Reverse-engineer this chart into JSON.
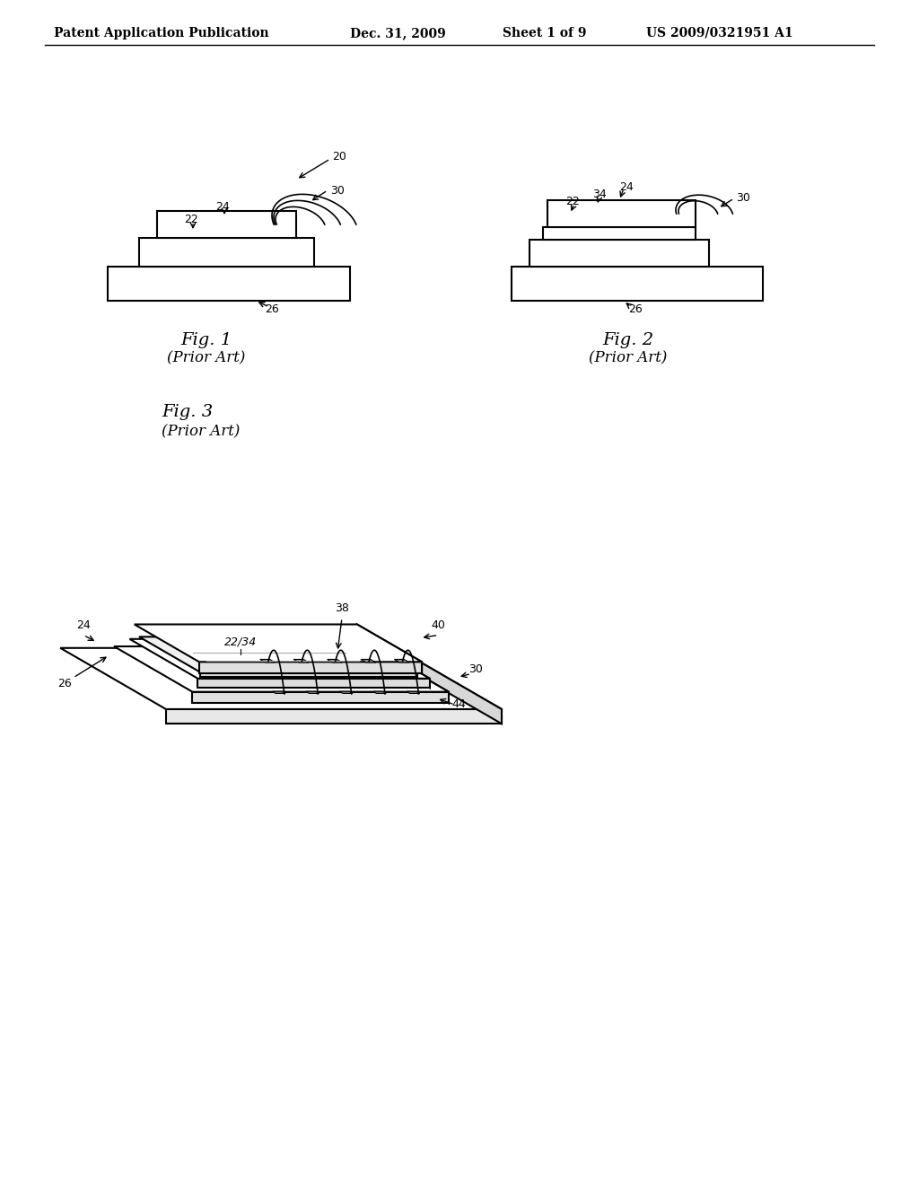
{
  "bg_color": "#ffffff",
  "header_text": "Patent Application Publication",
  "header_date": "Dec. 31, 2009",
  "header_sheet": "Sheet 1 of 9",
  "header_patent": "US 2009/0321951 A1",
  "fig1_label": "Fig. 1\n(Prior Art)",
  "fig2_label": "Fig. 2\n(Prior Art)",
  "fig3_label": "Fig. 3\n(Prior Art)",
  "line_color": "#000000",
  "line_width": 1.5,
  "annotation_fontsize": 9,
  "figlabel_fontsize": 14
}
